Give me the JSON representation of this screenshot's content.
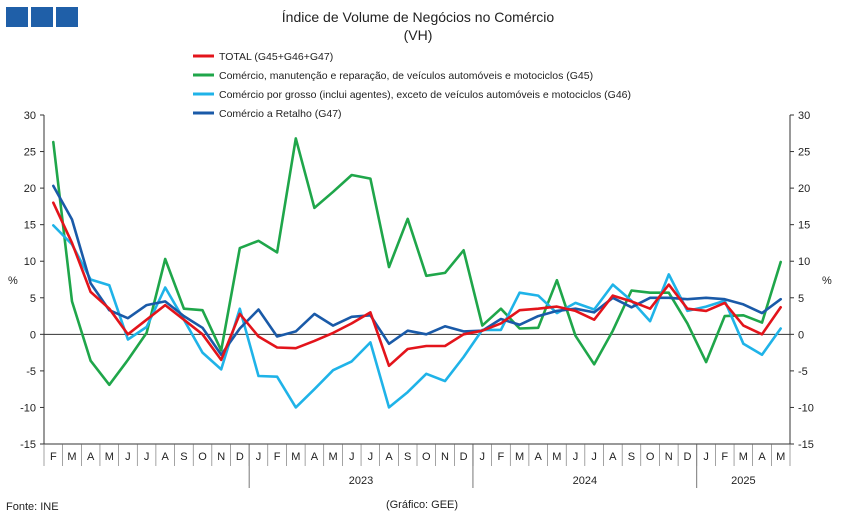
{
  "brand": {
    "name": "GEE"
  },
  "chart_data": {
    "type": "line",
    "title": "Índice de Volume de Negócios no Comércio",
    "subtitle": "(VH)",
    "ylabel_left": "%",
    "ylabel_right": "%",
    "ylim": [
      -15,
      30
    ],
    "yticks": [
      -15,
      -10,
      -5,
      0,
      5,
      10,
      15,
      20,
      25,
      30
    ],
    "grid": false,
    "legend_position": "top",
    "x": [
      "F",
      "M",
      "A",
      "M",
      "J",
      "J",
      "A",
      "S",
      "O",
      "N",
      "D",
      "J",
      "F",
      "M",
      "A",
      "M",
      "J",
      "J",
      "A",
      "S",
      "O",
      "N",
      "D",
      "J",
      "F",
      "M",
      "A",
      "M",
      "J",
      "J",
      "A",
      "S",
      "O",
      "N",
      "D",
      "J",
      "F",
      "M",
      "A",
      "M"
    ],
    "year_labels": [
      {
        "label": "2023",
        "from": 11,
        "to": 22
      },
      {
        "label": "2024",
        "from": 23,
        "to": 34
      },
      {
        "label": "2025",
        "from": 35,
        "to": 39
      }
    ],
    "series": [
      {
        "name": "TOTAL (G45+G46+G47)",
        "color": "#e3141b",
        "values": [
          18.0,
          12.5,
          5.8,
          3.5,
          0.0,
          2.0,
          4.0,
          2.0,
          0.0,
          -3.5,
          2.8,
          -0.3,
          -1.8,
          -1.9,
          -0.9,
          0.2,
          1.5,
          3.0,
          -4.3,
          -2.0,
          -1.6,
          -1.6,
          0.0,
          0.5,
          1.5,
          3.3,
          3.5,
          3.8,
          3.2,
          2.0,
          5.3,
          4.5,
          3.5,
          6.8,
          3.5,
          3.2,
          4.3,
          1.2,
          0.0,
          3.7
        ]
      },
      {
        "name": "Comércio, manutenção e reparação, de veículos automóveis e motociclos (G45)",
        "color": "#1fa64a",
        "values": [
          26.3,
          4.5,
          -3.6,
          -6.9,
          -3.5,
          0.2,
          10.3,
          3.5,
          3.3,
          -2.2,
          11.8,
          12.8,
          11.2,
          26.8,
          17.3,
          19.5,
          21.8,
          21.3,
          9.2,
          15.8,
          8.0,
          8.4,
          11.5,
          1.2,
          3.5,
          0.8,
          0.9,
          7.4,
          -0.2,
          -4.1,
          0.5,
          6.0,
          5.7,
          5.7,
          1.5,
          -3.8,
          2.5,
          2.6,
          1.6,
          9.9
        ]
      },
      {
        "name": "Comércio por grosso (inclui agentes), exceto de veículos automóveis e motociclos (G46)",
        "color": "#1fb3e8",
        "values": [
          14.9,
          12.3,
          7.5,
          6.7,
          -0.7,
          1.0,
          6.4,
          2.0,
          -2.5,
          -4.8,
          3.5,
          -5.7,
          -5.8,
          -10.0,
          -7.5,
          -4.9,
          -3.7,
          -1.1,
          -10.0,
          -7.9,
          -5.4,
          -6.4,
          -3.1,
          0.6,
          0.6,
          5.7,
          5.3,
          2.9,
          4.3,
          3.4,
          6.8,
          4.6,
          1.8,
          8.2,
          3.2,
          3.8,
          4.6,
          -1.3,
          -2.8,
          0.8
        ]
      },
      {
        "name": "Comércio a Retalho (G47)",
        "color": "#1a5aa8",
        "values": [
          20.3,
          15.7,
          7.0,
          3.3,
          2.2,
          4.0,
          4.5,
          2.5,
          0.9,
          -2.8,
          0.8,
          3.4,
          -0.3,
          0.4,
          2.8,
          1.2,
          2.4,
          2.6,
          -1.3,
          0.5,
          0.0,
          1.1,
          0.4,
          0.5,
          2.1,
          1.3,
          2.5,
          3.2,
          3.5,
          3.0,
          5.0,
          3.7,
          5.0,
          5.0,
          4.8,
          5.0,
          4.8,
          4.1,
          2.9,
          4.8
        ]
      }
    ]
  },
  "footer": {
    "source": "Fonte: INE",
    "credit": "(Gráfico: GEE)"
  }
}
